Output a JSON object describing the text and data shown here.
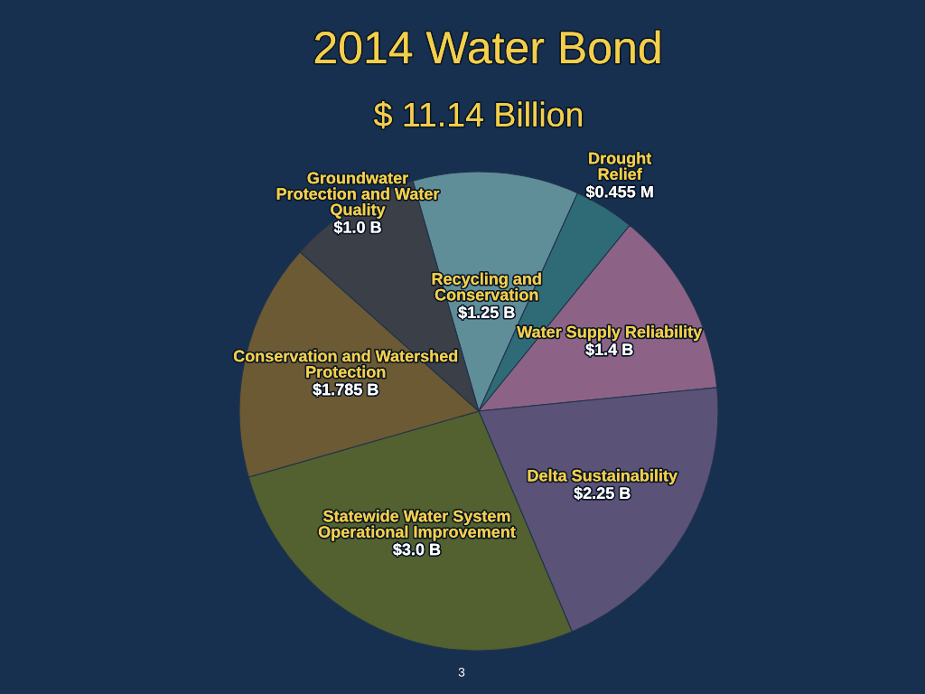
{
  "chart_data": {
    "type": "pie",
    "title": "2014 Water Bond",
    "subtitle": "$ 11.14 Billion",
    "categories": [
      "Recycling and\nConservation",
      "Drought\nRelief",
      "Water Supply Reliability",
      "Delta Sustainability",
      "Statewide Water System\nOperational Improvement",
      "Conservation and Watershed\nProtection",
      "Groundwater\nProtection and Water\nQuality"
    ],
    "values": [
      1.25,
      0.455,
      1.4,
      2.25,
      3.0,
      1.785,
      1.0
    ],
    "value_labels": [
      "$1.25 B",
      "$0.455 M",
      "$1.4 B",
      "$2.25 B",
      "$3.0 B",
      "$1.785 B",
      "$1.0 B"
    ],
    "colors": [
      "#5f8e99",
      "#2f6b77",
      "#8c6386",
      "#5b5278",
      "#52612f",
      "#6b5a33",
      "#3b3f47"
    ],
    "annotations": [
      "3"
    ]
  }
}
